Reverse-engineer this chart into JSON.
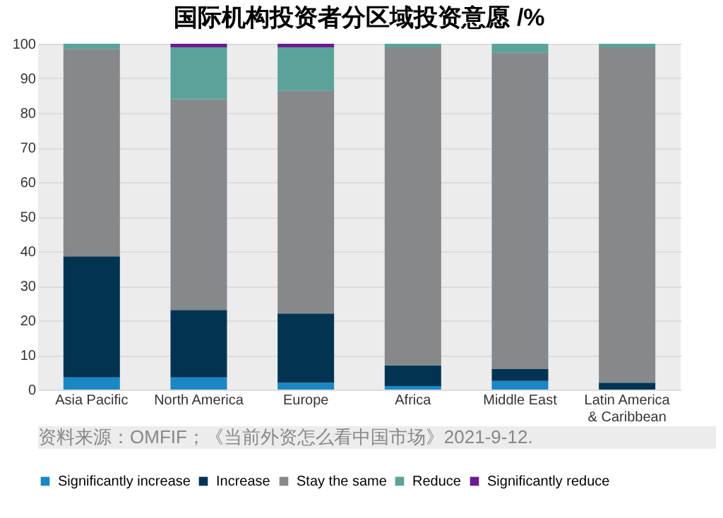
{
  "chart_data": {
    "type": "bar",
    "title": "国际机构投资者分区域投资意愿 /%",
    "stacked": true,
    "categories": [
      "Asia Pacific",
      "North America",
      "Europe",
      "Africa",
      "Middle East",
      "Latin America\n& Caribbean"
    ],
    "series": [
      {
        "name": "Significantly increase",
        "color": "#1a87c4",
        "values": [
          3.5,
          3.5,
          2,
          1,
          2.5,
          0
        ]
      },
      {
        "name": "Increase",
        "color": "#003452",
        "values": [
          35,
          19.5,
          20,
          6,
          3.5,
          2
        ]
      },
      {
        "name": "Stay the same",
        "color": "#86898c",
        "values": [
          60,
          61,
          64.5,
          92,
          91.5,
          97
        ]
      },
      {
        "name": "Reduce",
        "color": "#5ba39a",
        "values": [
          1.5,
          15,
          12.5,
          1,
          2.5,
          1
        ]
      },
      {
        "name": "Significantly reduce",
        "color": "#6a1b8f",
        "values": [
          0,
          1,
          1,
          0,
          0,
          0
        ]
      }
    ],
    "ylim": [
      0,
      100
    ],
    "yticks": [
      0,
      10,
      20,
      30,
      40,
      50,
      60,
      70,
      80,
      90,
      100
    ],
    "grid": "y",
    "legend": "bottom",
    "annotations": [
      "资料来源：OMFIF；《当前外资怎么看中国市场》2021-9-12."
    ]
  }
}
